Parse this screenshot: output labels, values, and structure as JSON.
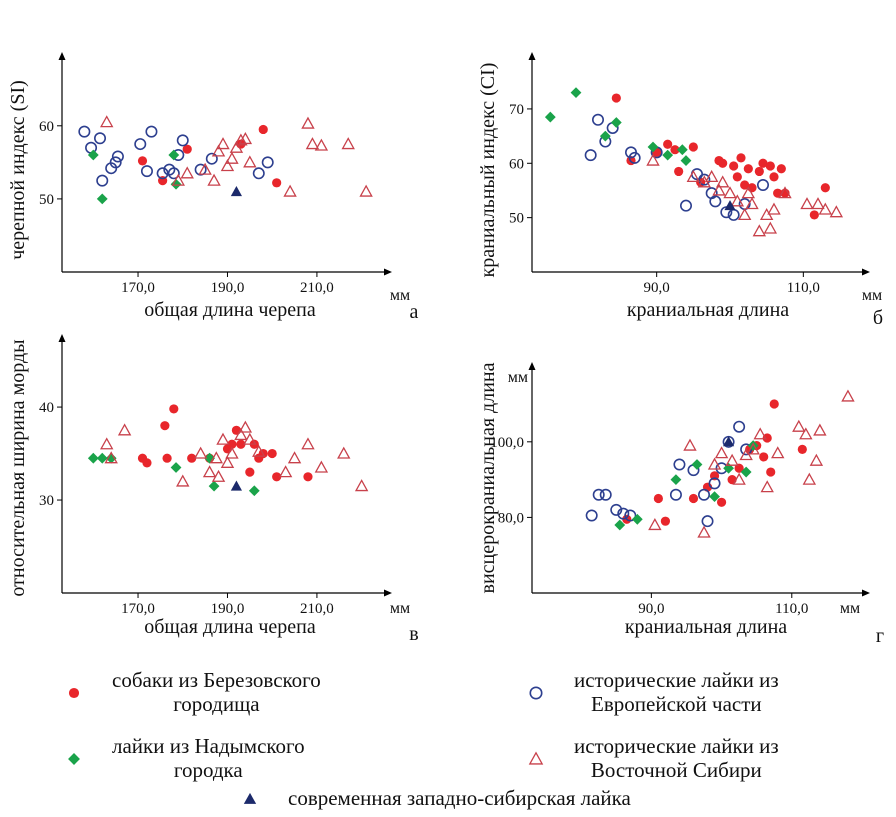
{
  "colors": {
    "berezovo": "#e8262b",
    "europe": "#2d3f8f",
    "nadym": "#1aa34a",
    "siberia": "#c8414b",
    "modern": "#1c2a6b"
  },
  "legend": {
    "items": [
      {
        "key": "berezovo",
        "marker": "filled-circle",
        "text": "собаки из Березовского\nгородища"
      },
      {
        "key": "europe",
        "marker": "open-circle",
        "text": "исторические лайки из\nЕвропейской части"
      },
      {
        "key": "nadym",
        "marker": "filled-diamond",
        "text": "лайки из Надымского\nгородка"
      },
      {
        "key": "siberia",
        "marker": "open-triangle",
        "text": "исторические лайки из\nВосточной Сибири"
      },
      {
        "key": "modern",
        "marker": "filled-triangle",
        "text": "современная западно-сибирская лайка"
      }
    ]
  },
  "chart_data": [
    {
      "type": "scatter",
      "panel_letter": "а",
      "xlabel": "общая длина черепа",
      "ylabel": "черепной индекс (SI)",
      "xunit": "мм",
      "yunit": "",
      "xticks": [
        170,
        190,
        210
      ],
      "xtick_labels": [
        "170,0",
        "190,0",
        "210,0"
      ],
      "yticks": [
        50,
        60
      ],
      "ytick_labels": [
        "50",
        "60"
      ],
      "xlim": [
        153,
        225
      ],
      "ylim": [
        40,
        69
      ],
      "series": [
        {
          "key": "berezovo",
          "points": [
            [
              171,
              55.2
            ],
            [
              175.5,
              52.5
            ],
            [
              181,
              56.8
            ],
            [
              193,
              57.5
            ],
            [
              198,
              59.5
            ],
            [
              201,
              52.2
            ]
          ]
        },
        {
          "key": "europe",
          "points": [
            [
              158,
              59.2
            ],
            [
              159.5,
              57
            ],
            [
              161.5,
              58.3
            ],
            [
              162,
              52.5
            ],
            [
              164,
              54.2
            ],
            [
              165,
              55
            ],
            [
              165.5,
              55.8
            ],
            [
              170.5,
              57.5
            ],
            [
              172,
              53.8
            ],
            [
              173,
              59.2
            ],
            [
              175.5,
              53.5
            ],
            [
              177,
              54
            ],
            [
              178,
              53.5
            ],
            [
              179,
              56
            ],
            [
              180,
              58
            ],
            [
              184,
              54
            ],
            [
              186.5,
              55.5
            ],
            [
              197,
              53.5
            ],
            [
              199,
              55
            ]
          ]
        },
        {
          "key": "nadym",
          "points": [
            [
              160,
              56
            ],
            [
              162,
              50
            ],
            [
              178,
              56
            ],
            [
              178.5,
              52
            ]
          ]
        },
        {
          "key": "siberia",
          "points": [
            [
              163,
              60.5
            ],
            [
              179,
              52.5
            ],
            [
              181,
              53.5
            ],
            [
              185,
              54
            ],
            [
              187,
              52.5
            ],
            [
              188,
              56.5
            ],
            [
              189,
              57.5
            ],
            [
              190,
              54.5
            ],
            [
              191,
              55.5
            ],
            [
              192,
              57
            ],
            [
              193,
              58
            ],
            [
              194,
              58.2
            ],
            [
              195,
              55
            ],
            [
              204,
              51
            ],
            [
              208,
              60.3
            ],
            [
              209,
              57.5
            ],
            [
              211,
              57.3
            ],
            [
              217,
              57.5
            ],
            [
              221,
              51
            ]
          ]
        },
        {
          "key": "modern",
          "points": [
            [
              192,
              51
            ]
          ]
        }
      ]
    },
    {
      "type": "scatter",
      "panel_letter": "б",
      "xlabel": "краниальная длина",
      "ylabel": "краниальный индекс (CI)",
      "xunit": "мм",
      "yunit": "",
      "xticks": [
        90,
        110
      ],
      "xtick_labels": [
        "90,0",
        "110,0"
      ],
      "yticks": [
        50,
        60,
        70
      ],
      "ytick_labels": [
        "50",
        "60",
        "70"
      ],
      "xlim": [
        73,
        118
      ],
      "ylim": [
        40,
        79
      ],
      "series": [
        {
          "key": "berezovo",
          "points": [
            [
              84.5,
              72
            ],
            [
              86.5,
              60.5
            ],
            [
              90,
              62
            ],
            [
              91.5,
              63.5
            ],
            [
              92.5,
              62.5
            ],
            [
              93,
              58.5
            ],
            [
              95,
              63
            ],
            [
              96,
              56.5
            ],
            [
              98.5,
              60.5
            ],
            [
              99,
              60
            ],
            [
              100.5,
              59.5
            ],
            [
              101,
              57.5
            ],
            [
              101.5,
              61
            ],
            [
              102,
              56
            ],
            [
              102.5,
              59
            ],
            [
              103,
              55.5
            ],
            [
              104,
              58.5
            ],
            [
              104.5,
              60
            ],
            [
              105.5,
              59.5
            ],
            [
              106,
              57.5
            ],
            [
              106.5,
              54.5
            ],
            [
              107,
              59
            ],
            [
              107.5,
              54.5
            ],
            [
              111.5,
              50.5
            ],
            [
              113,
              55.5
            ]
          ]
        },
        {
          "key": "europe",
          "points": [
            [
              81,
              61.5
            ],
            [
              82,
              68
            ],
            [
              83,
              64
            ],
            [
              84,
              66.5
            ],
            [
              86.5,
              62
            ],
            [
              87,
              61
            ],
            [
              90,
              62
            ],
            [
              94,
              52.2
            ],
            [
              95.5,
              58
            ],
            [
              96.5,
              57
            ],
            [
              97.5,
              54.5
            ],
            [
              98,
              53
            ],
            [
              99.5,
              51
            ],
            [
              100.5,
              50.5
            ],
            [
              102,
              52.5
            ],
            [
              104.5,
              56
            ]
          ]
        },
        {
          "key": "nadym",
          "points": [
            [
              75.5,
              68.5
            ],
            [
              79,
              73
            ],
            [
              83,
              65
            ],
            [
              84.5,
              67.5
            ],
            [
              89.5,
              63
            ],
            [
              91.5,
              61.5
            ],
            [
              93.5,
              62.5
            ],
            [
              94,
              60.5
            ]
          ]
        },
        {
          "key": "siberia",
          "points": [
            [
              89.5,
              60.5
            ],
            [
              95,
              57.5
            ],
            [
              96.5,
              56.5
            ],
            [
              97.5,
              57.5
            ],
            [
              98.5,
              55
            ],
            [
              99,
              56.5
            ],
            [
              100,
              54.5
            ],
            [
              101,
              53
            ],
            [
              102,
              50.5
            ],
            [
              102.5,
              54.5
            ],
            [
              103,
              52.5
            ],
            [
              104,
              47.5
            ],
            [
              105,
              50.5
            ],
            [
              105.5,
              48
            ],
            [
              106,
              51.5
            ],
            [
              107.5,
              54.5
            ],
            [
              110.5,
              52.5
            ],
            [
              112,
              52.5
            ],
            [
              113,
              51.5
            ],
            [
              114.5,
              51
            ]
          ]
        },
        {
          "key": "modern",
          "points": [
            [
              100,
              52.2
            ]
          ]
        }
      ]
    },
    {
      "type": "scatter",
      "panel_letter": "в",
      "xlabel": "общая длина черепа",
      "ylabel": "относительная ширина морды",
      "xunit": "мм",
      "yunit": "",
      "xticks": [
        170,
        190,
        210
      ],
      "xtick_labels": [
        "170,0",
        "190,0",
        "210,0"
      ],
      "yticks": [
        30,
        40
      ],
      "ytick_labels": [
        "30",
        "40"
      ],
      "xlim": [
        153,
        225
      ],
      "ylim": [
        20,
        47
      ],
      "series": [
        {
          "key": "berezovo",
          "points": [
            [
              171,
              34.5
            ],
            [
              172,
              34
            ],
            [
              176,
              38
            ],
            [
              176.5,
              34.5
            ],
            [
              178,
              39.8
            ],
            [
              182,
              34.5
            ],
            [
              186,
              34.5
            ],
            [
              190,
              35.5
            ],
            [
              191,
              36
            ],
            [
              192,
              37.5
            ],
            [
              193,
              36
            ],
            [
              195,
              33
            ],
            [
              196,
              36
            ],
            [
              197,
              34.5
            ],
            [
              198,
              35
            ],
            [
              200,
              35
            ],
            [
              201,
              32.5
            ],
            [
              208,
              32.5
            ]
          ]
        },
        {
          "key": "europe",
          "points": []
        },
        {
          "key": "nadym",
          "points": [
            [
              160,
              34.5
            ],
            [
              162,
              34.5
            ],
            [
              164,
              34.5
            ],
            [
              178.5,
              33.5
            ],
            [
              186,
              34.5
            ],
            [
              187,
              31.5
            ],
            [
              196,
              31
            ]
          ]
        },
        {
          "key": "siberia",
          "points": [
            [
              163,
              36
            ],
            [
              164,
              34.5
            ],
            [
              167,
              37.5
            ],
            [
              180,
              32
            ],
            [
              184,
              35
            ],
            [
              186,
              33
            ],
            [
              187.5,
              34.5
            ],
            [
              188,
              32.5
            ],
            [
              189,
              36.5
            ],
            [
              190,
              34
            ],
            [
              191,
              35
            ],
            [
              193,
              37
            ],
            [
              194,
              37.8
            ],
            [
              195,
              36.5
            ],
            [
              197,
              35.2
            ],
            [
              203,
              33
            ],
            [
              205,
              34.5
            ],
            [
              208,
              36
            ],
            [
              211,
              33.5
            ],
            [
              216,
              35
            ],
            [
              220,
              31.5
            ]
          ]
        },
        {
          "key": "modern",
          "points": [
            [
              192,
              31.5
            ]
          ]
        }
      ]
    },
    {
      "type": "scatter",
      "panel_letter": "г",
      "xlabel": "краниальная длина",
      "ylabel": "висцерокраниальная длина",
      "xunit": "мм",
      "yunit": "мм",
      "xticks": [
        90,
        110
      ],
      "xtick_labels": [
        "90,0",
        "110,0"
      ],
      "yticks": [
        80,
        100
      ],
      "ytick_labels": [
        "80,0",
        "100,0"
      ],
      "xlim": [
        73,
        120
      ],
      "ylim": [
        60,
        119
      ],
      "series": [
        {
          "key": "berezovo",
          "points": [
            [
              86.5,
              79.5
            ],
            [
              91,
              85
            ],
            [
              92,
              79
            ],
            [
              96,
              85
            ],
            [
              98,
              88
            ],
            [
              99,
              91
            ],
            [
              100,
              84
            ],
            [
              101.5,
              90
            ],
            [
              102.5,
              93
            ],
            [
              104,
              98
            ],
            [
              105,
              99
            ],
            [
              106,
              96
            ],
            [
              106.5,
              101
            ],
            [
              107,
              92
            ],
            [
              107.5,
              110
            ],
            [
              111.5,
              98
            ]
          ]
        },
        {
          "key": "europe",
          "points": [
            [
              81.5,
              80.5
            ],
            [
              82.5,
              86
            ],
            [
              83.5,
              86
            ],
            [
              85,
              82
            ],
            [
              86,
              81
            ],
            [
              87,
              80.5
            ],
            [
              93.5,
              86
            ],
            [
              94,
              94
            ],
            [
              96,
              92.5
            ],
            [
              97.5,
              86
            ],
            [
              98,
              79
            ],
            [
              99,
              89
            ],
            [
              100,
              93
            ],
            [
              101,
              100
            ],
            [
              102.5,
              104
            ],
            [
              103.5,
              98
            ]
          ]
        },
        {
          "key": "nadym",
          "points": [
            [
              85.5,
              78
            ],
            [
              88,
              79.5
            ],
            [
              93.5,
              90
            ],
            [
              96.5,
              94
            ],
            [
              99,
              85.5
            ],
            [
              101,
              93
            ],
            [
              103.5,
              92
            ],
            [
              104.5,
              99
            ]
          ]
        },
        {
          "key": "siberia",
          "points": [
            [
              90.5,
              78
            ],
            [
              95.5,
              99
            ],
            [
              97.5,
              76
            ],
            [
              99,
              94
            ],
            [
              100,
              97
            ],
            [
              101.5,
              95
            ],
            [
              102.5,
              90
            ],
            [
              103.5,
              96.5
            ],
            [
              104.5,
              98
            ],
            [
              105.5,
              102
            ],
            [
              106.5,
              88
            ],
            [
              108,
              97
            ],
            [
              111,
              104
            ],
            [
              112,
              102
            ],
            [
              112.5,
              90
            ],
            [
              113.5,
              95
            ],
            [
              114,
              103
            ],
            [
              118,
              112
            ]
          ]
        },
        {
          "key": "modern",
          "points": [
            [
              101,
              100
            ]
          ]
        }
      ]
    }
  ]
}
